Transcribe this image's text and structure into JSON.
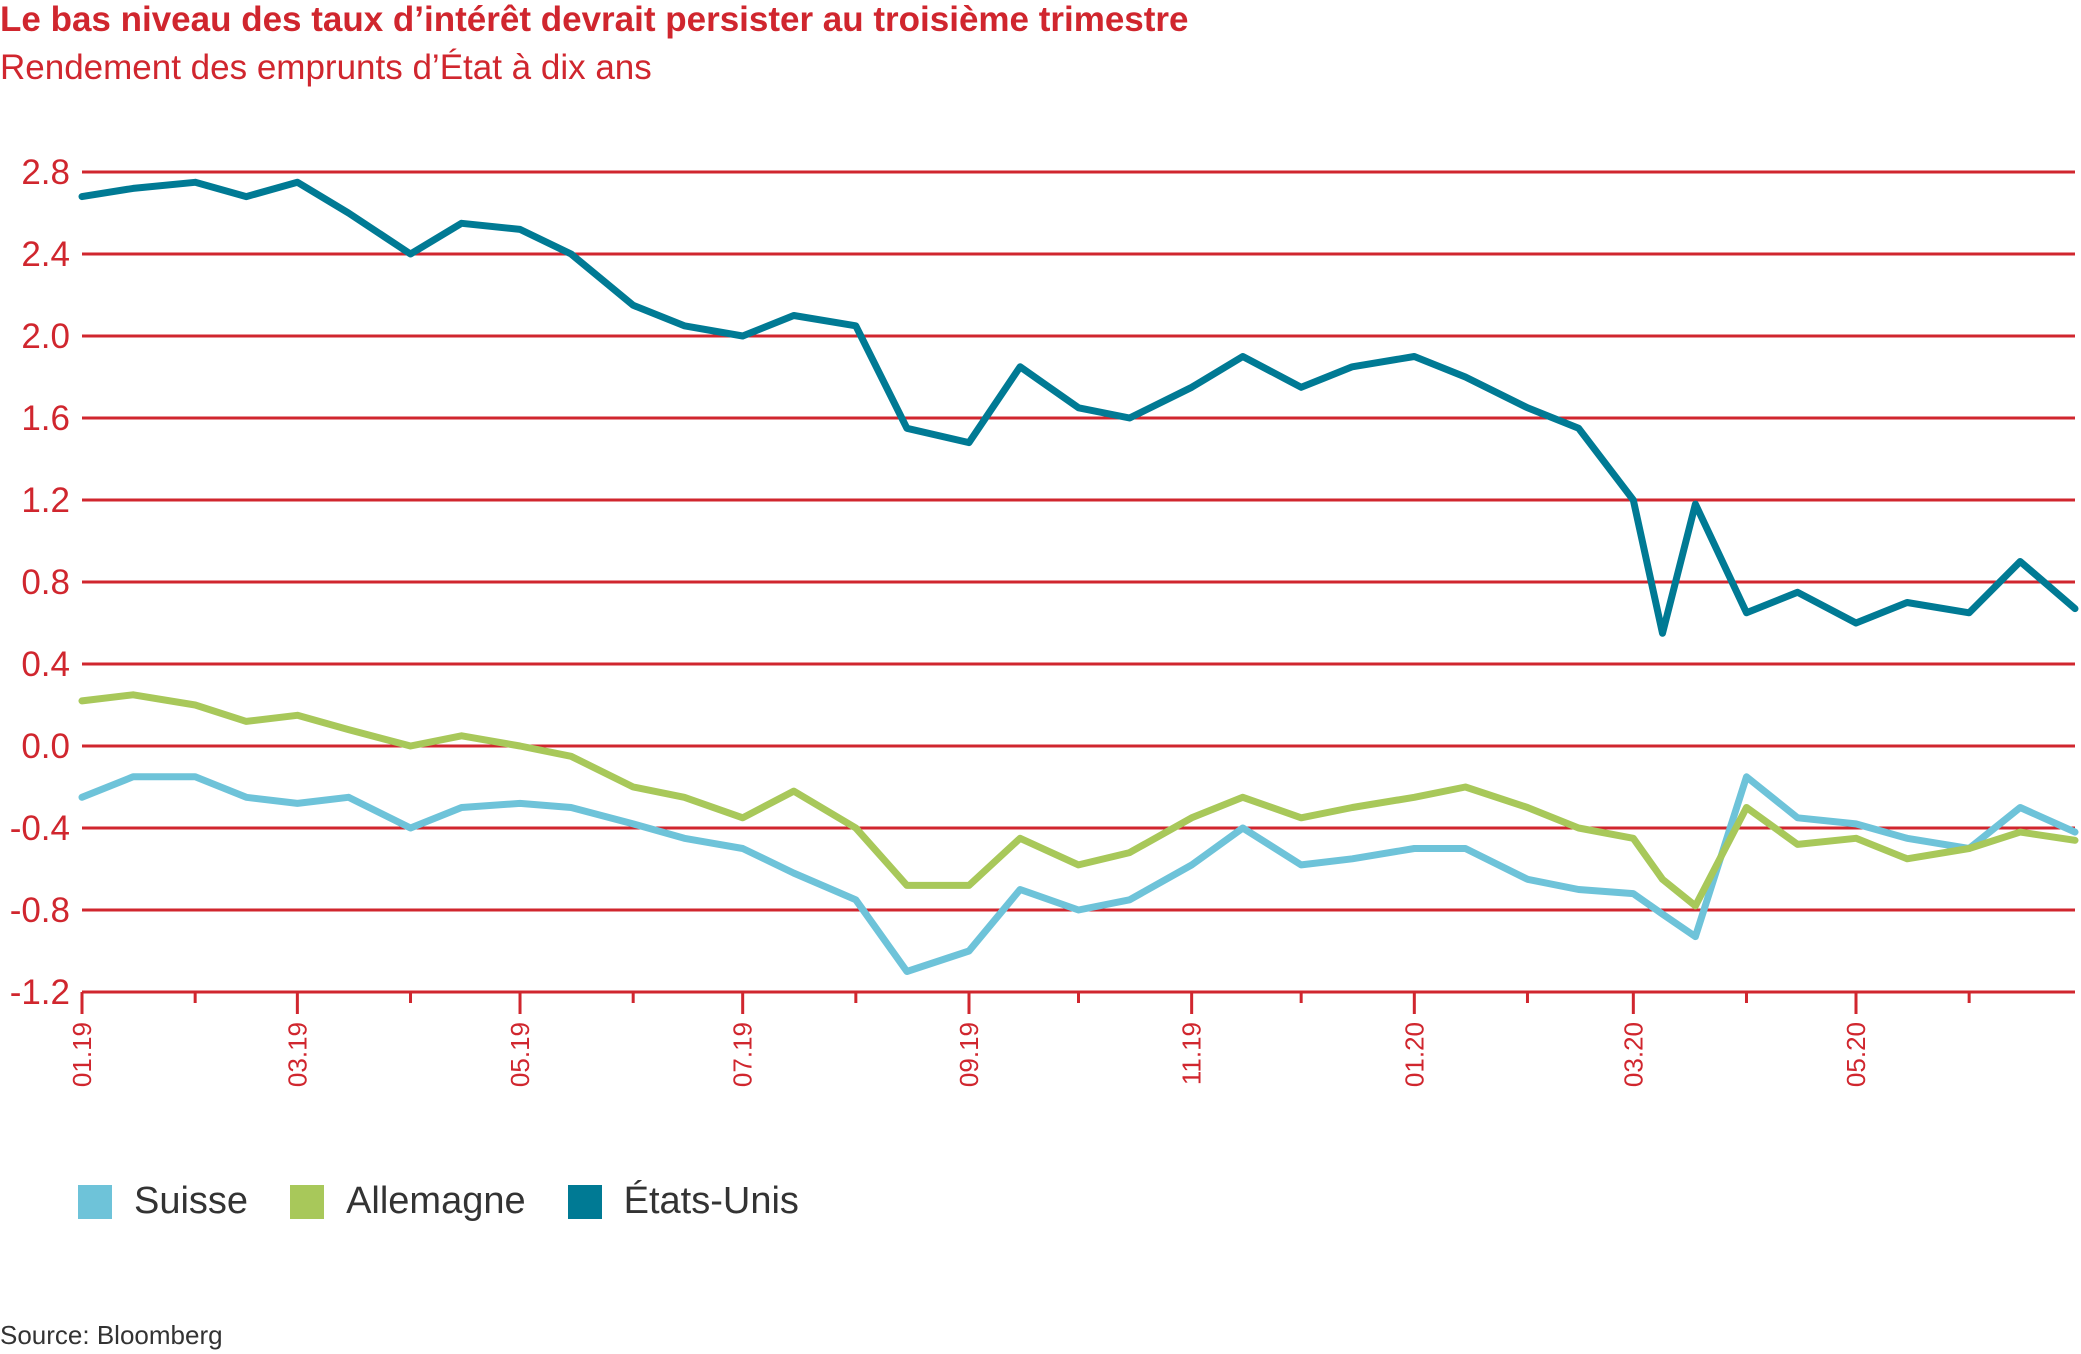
{
  "chart_data": {
    "type": "line",
    "title": "Le bas niveau des taux d’intérêt devrait persister au troisième trimestre",
    "subtitle": "Rendement des emprunts d’État à dix ans",
    "source": "Source: Bloomberg",
    "ylim": [
      -1.2,
      2.8
    ],
    "yticks": [
      "2.8",
      "2.4",
      "2.0",
      "1.6",
      "1.2",
      "0.8",
      "0.4",
      "0.0",
      "-0.4",
      "-0.8",
      "-1.2"
    ],
    "xticks": [
      "01.19",
      "03.19",
      "05.19",
      "07.19",
      "09.19",
      "11.19",
      "01.20",
      "03.20",
      "05.20"
    ],
    "grid": true,
    "legend_position": "bottom-left",
    "x": [
      "2019-01-01",
      "2019-01-15",
      "2019-02-01",
      "2019-02-15",
      "2019-03-01",
      "2019-03-15",
      "2019-04-01",
      "2019-04-15",
      "2019-05-01",
      "2019-05-15",
      "2019-06-01",
      "2019-06-15",
      "2019-07-01",
      "2019-07-15",
      "2019-08-01",
      "2019-08-15",
      "2019-09-01",
      "2019-09-15",
      "2019-10-01",
      "2019-10-15",
      "2019-11-01",
      "2019-11-15",
      "2019-12-01",
      "2019-12-15",
      "2020-01-01",
      "2020-01-15",
      "2020-02-01",
      "2020-02-15",
      "2020-03-01",
      "2020-03-09",
      "2020-03-18",
      "2020-04-01",
      "2020-04-15",
      "2020-05-01",
      "2020-05-15",
      "2020-06-01",
      "2020-06-15",
      "2020-06-30"
    ],
    "series": [
      {
        "name": "Suisse",
        "color": "#6ec3d9",
        "values": [
          -0.25,
          -0.15,
          -0.15,
          -0.25,
          -0.28,
          -0.25,
          -0.4,
          -0.3,
          -0.28,
          -0.3,
          -0.38,
          -0.45,
          -0.5,
          -0.62,
          -0.75,
          -1.1,
          -1.0,
          -0.7,
          -0.8,
          -0.75,
          -0.58,
          -0.4,
          -0.58,
          -0.55,
          -0.5,
          -0.5,
          -0.65,
          -0.7,
          -0.72,
          -0.82,
          -0.93,
          -0.15,
          -0.35,
          -0.38,
          -0.45,
          -0.5,
          -0.3,
          -0.42
        ]
      },
      {
        "name": "Allemagne",
        "color": "#a8c85a",
        "values": [
          0.22,
          0.25,
          0.2,
          0.12,
          0.15,
          0.08,
          0.0,
          0.05,
          0.0,
          -0.05,
          -0.2,
          -0.25,
          -0.35,
          -0.22,
          -0.4,
          -0.68,
          -0.68,
          -0.45,
          -0.58,
          -0.52,
          -0.35,
          -0.25,
          -0.35,
          -0.3,
          -0.25,
          -0.2,
          -0.3,
          -0.4,
          -0.45,
          -0.65,
          -0.78,
          -0.3,
          -0.48,
          -0.45,
          -0.55,
          -0.5,
          -0.42,
          -0.46
        ]
      },
      {
        "name": "États-Unis",
        "color": "#007a94",
        "values": [
          2.68,
          2.72,
          2.75,
          2.68,
          2.75,
          2.6,
          2.4,
          2.55,
          2.52,
          2.4,
          2.15,
          2.05,
          2.0,
          2.1,
          2.05,
          1.55,
          1.48,
          1.85,
          1.65,
          1.6,
          1.75,
          1.9,
          1.75,
          1.85,
          1.9,
          1.8,
          1.65,
          1.55,
          1.2,
          0.55,
          1.18,
          0.65,
          0.75,
          0.6,
          0.7,
          0.65,
          0.9,
          0.67
        ]
      }
    ]
  }
}
